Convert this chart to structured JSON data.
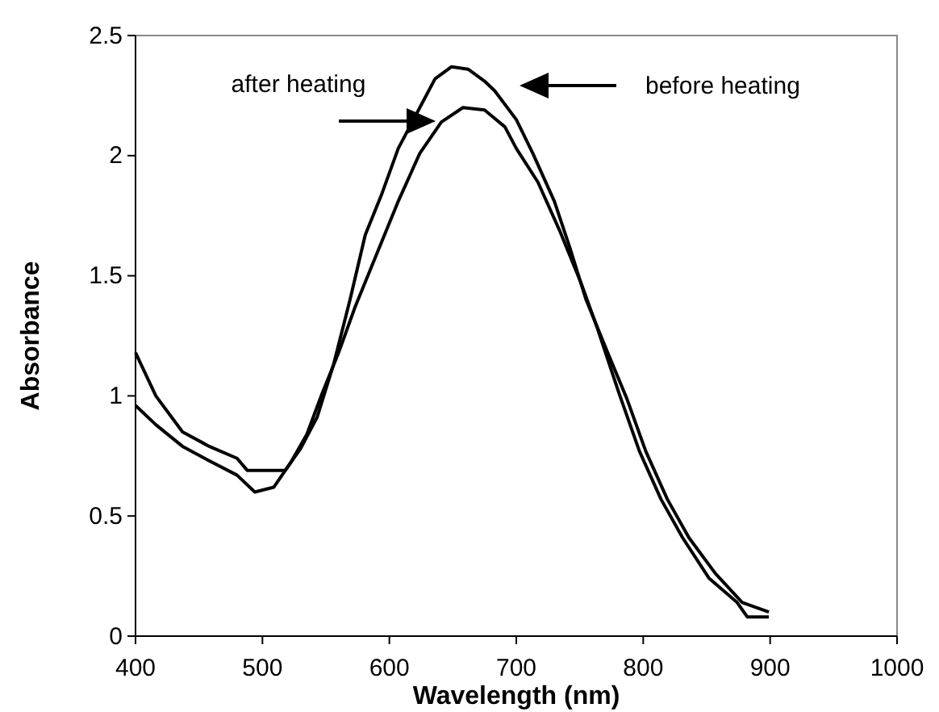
{
  "chart_data": {
    "type": "line",
    "xlabel": "Wavelength (nm)",
    "ylabel": "Absorbance",
    "xlim": [
      400,
      1000
    ],
    "xticks": [
      400,
      500,
      600,
      700,
      800,
      900,
      1000
    ],
    "ylim": [
      0,
      2.5
    ],
    "yticks": [
      0,
      0.5,
      1,
      1.5,
      2,
      2.5
    ],
    "grid": false,
    "marker": "none",
    "line_style": "solid",
    "series": [
      {
        "color": "#000000",
        "x": [
          400,
          416,
          437,
          458,
          480,
          488,
          518,
          530,
          543,
          556,
          569,
          581,
          594,
          607,
          624,
          636,
          649,
          662,
          675,
          683,
          700,
          713,
          730,
          742,
          755,
          772,
          787,
          802,
          819,
          836,
          857,
          878,
          899
        ],
        "values": [
          1.18,
          1.0,
          0.85,
          0.79,
          0.74,
          0.69,
          0.69,
          0.78,
          0.91,
          1.13,
          1.4,
          1.67,
          1.84,
          2.03,
          2.2,
          2.32,
          2.37,
          2.36,
          2.31,
          2.27,
          2.15,
          2.01,
          1.81,
          1.62,
          1.4,
          1.18,
          0.99,
          0.77,
          0.57,
          0.41,
          0.26,
          0.14,
          0.1
        ]
      },
      {
        "color": "#000000",
        "x": [
          400,
          416,
          437,
          458,
          480,
          494,
          509,
          522,
          535,
          547,
          560,
          573,
          590,
          607,
          624,
          641,
          658,
          675,
          691,
          700,
          717,
          734,
          751,
          764,
          781,
          797,
          814,
          831,
          852,
          874,
          882,
          899
        ],
        "values": [
          0.96,
          0.88,
          0.79,
          0.73,
          0.67,
          0.6,
          0.62,
          0.72,
          0.84,
          1.01,
          1.18,
          1.37,
          1.59,
          1.81,
          2.01,
          2.14,
          2.2,
          2.19,
          2.12,
          2.03,
          1.89,
          1.69,
          1.47,
          1.28,
          1.01,
          0.77,
          0.57,
          0.41,
          0.24,
          0.14,
          0.08,
          0.08
        ]
      }
    ],
    "annotations": [
      "after heating",
      "before heating"
    ]
  }
}
